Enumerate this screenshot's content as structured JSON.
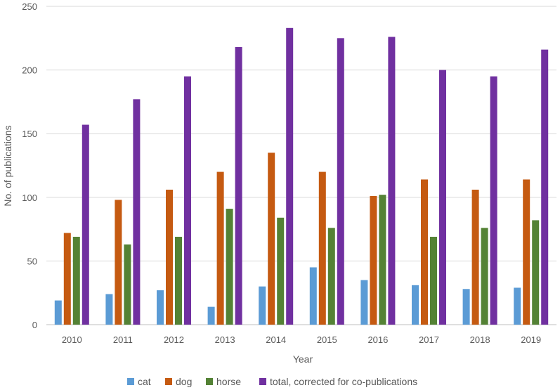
{
  "chart_data": {
    "type": "bar",
    "title": "",
    "xlabel": "Year",
    "ylabel": "No. of publications",
    "ylim": [
      0,
      250
    ],
    "yticks": [
      0,
      50,
      100,
      150,
      200,
      250
    ],
    "grid": true,
    "legend_position": "bottom",
    "categories": [
      "2010",
      "2011",
      "2012",
      "2013",
      "2014",
      "2015",
      "2016",
      "2017",
      "2018",
      "2019"
    ],
    "series": [
      {
        "name": "cat",
        "color": "#5B9BD5",
        "values": [
          19,
          24,
          27,
          14,
          30,
          45,
          35,
          31,
          28,
          29
        ]
      },
      {
        "name": "dog",
        "color": "#C55A11",
        "values": [
          72,
          98,
          106,
          120,
          135,
          120,
          101,
          114,
          106,
          114
        ]
      },
      {
        "name": "horse",
        "color": "#548235",
        "values": [
          69,
          63,
          69,
          91,
          84,
          76,
          102,
          69,
          76,
          82
        ]
      },
      {
        "name": "total, corrected for co-publications",
        "color": "#7030A0",
        "values": [
          157,
          177,
          195,
          218,
          233,
          225,
          226,
          200,
          195,
          216
        ]
      }
    ]
  }
}
